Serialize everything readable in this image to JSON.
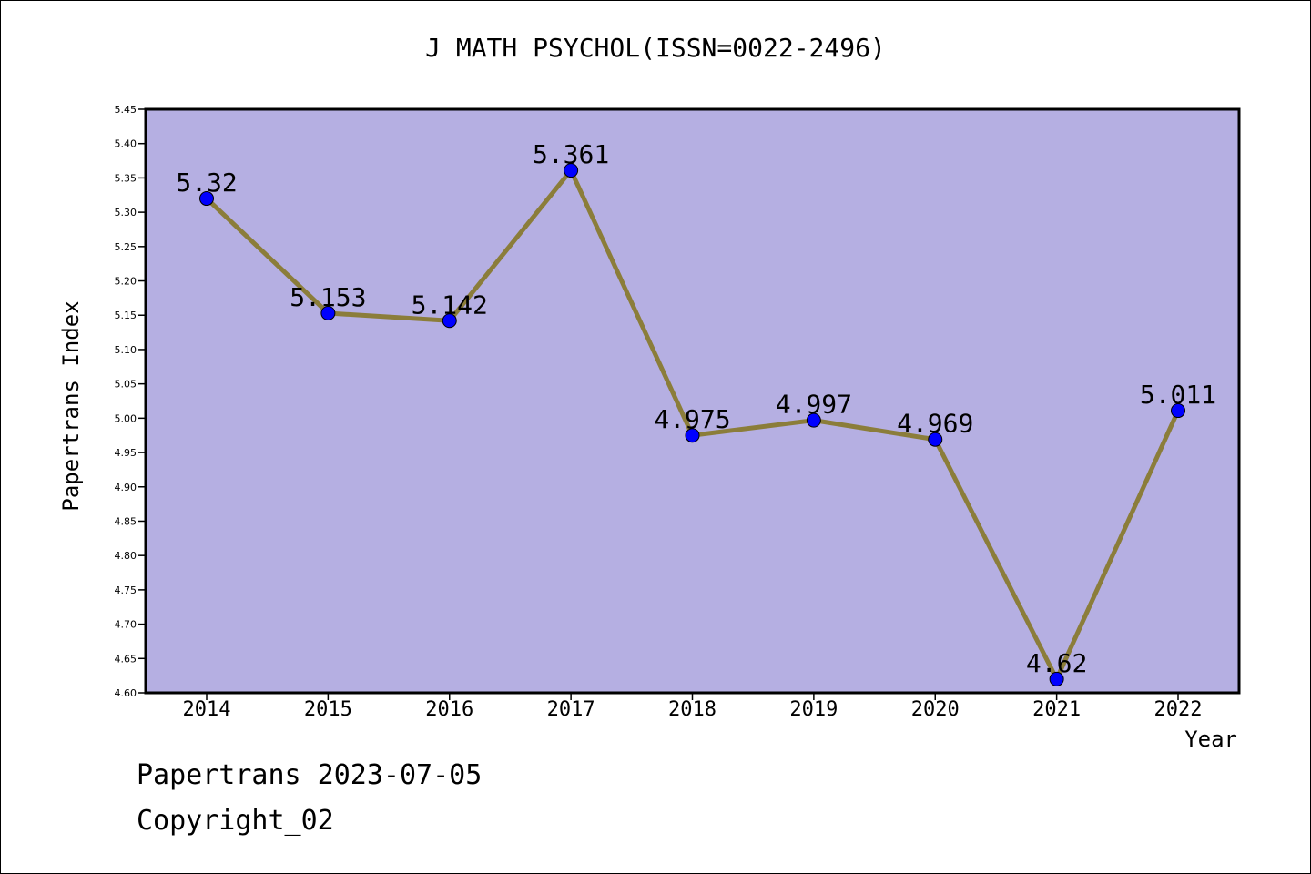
{
  "title": "J MATH PSYCHOL(ISSN=0022-2496)",
  "footer": {
    "date_line": "Papertrans 2023-07-05",
    "copyright": "Copyright_02"
  },
  "chart_data": {
    "type": "line",
    "title": "J MATH PSYCHOL(ISSN=0022-2496)",
    "xlabel": "Year",
    "ylabel": "Papertrans Index",
    "categories": [
      "2014",
      "2015",
      "2016",
      "2017",
      "2018",
      "2019",
      "2020",
      "2021",
      "2022"
    ],
    "values": [
      5.32,
      5.153,
      5.142,
      5.361,
      4.975,
      4.997,
      4.969,
      4.62,
      5.011
    ],
    "value_labels": [
      "5.32",
      "5.153",
      "5.142",
      "5.361",
      "4.975",
      "4.997",
      "4.969",
      "4.62",
      "5.011"
    ],
    "ylim": [
      4.6,
      5.45
    ],
    "yticks": [
      "4.60",
      "4.65",
      "4.70",
      "4.75",
      "4.80",
      "4.85",
      "4.90",
      "4.95",
      "5.00",
      "5.05",
      "5.10",
      "5.15",
      "5.20",
      "5.25",
      "5.30",
      "5.35",
      "5.40",
      "5.45"
    ],
    "grid": false,
    "colors": {
      "plot_background": "#b5afe2",
      "line": "#8b7d3a",
      "marker": "#0000ff"
    }
  }
}
